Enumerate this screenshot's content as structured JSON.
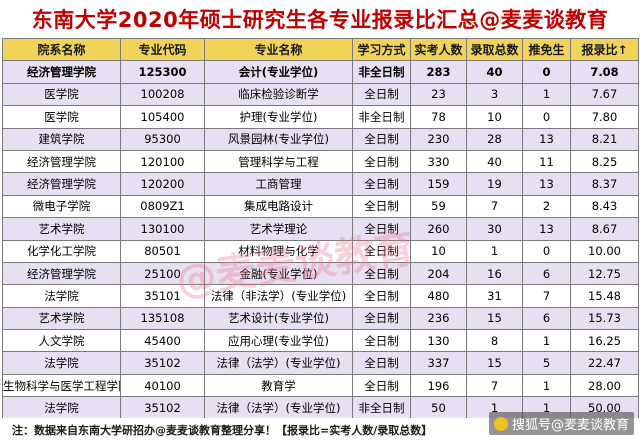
{
  "title": "东南大学2020年硕士研究生各专业报录比汇总@麦麦谈教育",
  "headers": [
    "院系名称",
    "专业代码",
    "专业名称",
    "学习方式",
    "实考人数",
    "录取总数",
    "推免生",
    "报录比↑"
  ],
  "rows": [
    [
      "经济管理学院",
      "125300",
      "会计(专业学位)",
      "非全日制",
      "283",
      "40",
      "0",
      "7.08"
    ],
    [
      "医学院",
      "100208",
      "临床检验诊断学",
      "全日制",
      "23",
      "3",
      "1",
      "7.67"
    ],
    [
      "医学院",
      "105400",
      "护理(专业学位)",
      "非全日制",
      "78",
      "10",
      "0",
      "7.80"
    ],
    [
      "建筑学院",
      "95300",
      "风景园林(专业学位)",
      "全日制",
      "230",
      "28",
      "13",
      "8.21"
    ],
    [
      "经济管理学院",
      "120100",
      "管理科学与工程",
      "全日制",
      "330",
      "40",
      "11",
      "8.25"
    ],
    [
      "经济管理学院",
      "120200",
      "工商管理",
      "全日制",
      "159",
      "19",
      "13",
      "8.37"
    ],
    [
      "微电子学院",
      "0809Z1",
      "集成电路设计",
      "全日制",
      "59",
      "7",
      "2",
      "8.43"
    ],
    [
      "艺术学院",
      "130100",
      "艺术学理论",
      "全日制",
      "260",
      "30",
      "13",
      "8.67"
    ],
    [
      "化学化工学院",
      "80501",
      "材料物理与化学",
      "全日制",
      "10",
      "1",
      "0",
      "10.00"
    ],
    [
      "经济管理学院",
      "25100",
      "金融(专业学位)",
      "全日制",
      "204",
      "16",
      "6",
      "12.75"
    ],
    [
      "法学院",
      "35101",
      "法律（非法学）(专业学位)",
      "全日制",
      "480",
      "31",
      "7",
      "15.48"
    ],
    [
      "艺术学院",
      "135108",
      "艺术设计(专业学位)",
      "全日制",
      "236",
      "15",
      "6",
      "15.73"
    ],
    [
      "人文学院",
      "45400",
      "应用心理(专业学位)",
      "全日制",
      "130",
      "8",
      "1",
      "16.25"
    ],
    [
      "法学院",
      "35102",
      "法律（法学）(专业学位)",
      "全日制",
      "337",
      "15",
      "5",
      "22.47"
    ],
    [
      "生物科学与医学工程学院",
      "40100",
      "教育学",
      "全日制",
      "196",
      "7",
      "1",
      "28.00"
    ],
    [
      "法学院",
      "35102",
      "法律（法学）(专业学位)",
      "非全日制",
      "50",
      "1",
      "1",
      "50.00"
    ]
  ],
  "footer": "注：数据来自东南大学研招办@麦麦谈教育整理分享！【报录比=实考人数/录取总数】",
  "watermark": "@麦麦谈教育",
  "corner_mark": "搜狐号@麦麦谈教育",
  "colors": {
    "title": "#c00000",
    "header_bg": "#f2d35a",
    "row_lavender": "#e6e0f2",
    "row_white": "#ffffff",
    "watermark": "#ec7896"
  }
}
